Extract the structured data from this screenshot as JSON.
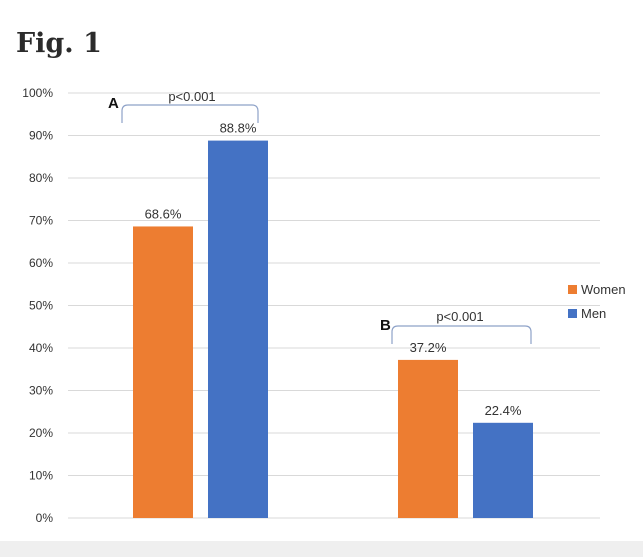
{
  "figure_label": "Fig. 1",
  "colors": {
    "women": "#ED7D31",
    "men": "#4472C4",
    "grid": "#d9d9d9",
    "bracket": "#8ea2c8",
    "text": "#333333"
  },
  "chart_data": {
    "type": "bar",
    "title": "",
    "xlabel": "",
    "ylabel": "",
    "ylim": [
      0,
      100
    ],
    "yticks": [
      "0%",
      "10%",
      "20%",
      "30%",
      "40%",
      "50%",
      "60%",
      "70%",
      "80%",
      "90%",
      "100%"
    ],
    "categories": [
      "A",
      "B"
    ],
    "series": [
      {
        "name": "Women",
        "values": [
          68.6,
          37.2
        ],
        "labels": [
          "68.6%",
          "37.2%"
        ]
      },
      {
        "name": "Men",
        "values": [
          88.8,
          22.4
        ],
        "labels": [
          "88.8%",
          "22.4%"
        ]
      }
    ],
    "annotations": [
      {
        "group": "A",
        "text": "p<0.001"
      },
      {
        "group": "B",
        "text": "p<0.001"
      }
    ],
    "grid": true,
    "legend": "right"
  }
}
